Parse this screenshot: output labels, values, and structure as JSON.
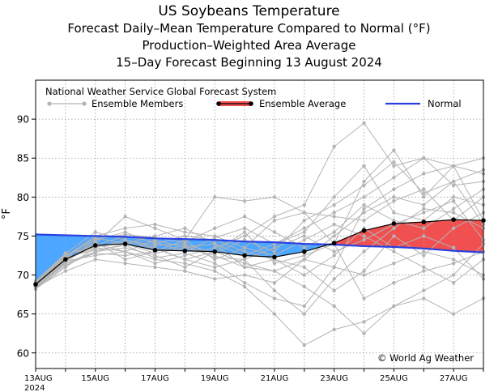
{
  "titles": {
    "line1": "US Soybeans Temperature",
    "line2": "Forecast Daily–Mean Temperature Compared to Normal (°F)",
    "line3": "Production–Weighted Area Average",
    "line4": "15–Day Forecast Beginning 13 August 2024"
  },
  "legend": {
    "header": "National Weather Service Global Forecast System",
    "members_label": "Ensemble Members",
    "average_label": "Ensemble Average",
    "normal_label": "Normal"
  },
  "copyright": "© World Ag Weather",
  "colors": {
    "normal": "#2a3fe0",
    "average": "#000000",
    "members": "#b4b4b4",
    "below_fill": "#4da6ff",
    "above_fill": "#f05050"
  },
  "chart_data": {
    "type": "line",
    "ylabel": "°F",
    "ylim": [
      58,
      95
    ],
    "yticks": [
      60,
      65,
      70,
      75,
      80,
      85,
      90
    ],
    "x": [
      "13AUG",
      "14AUG",
      "15AUG",
      "16AUG",
      "17AUG",
      "18AUG",
      "19AUG",
      "20AUG",
      "21AUG",
      "22AUG",
      "23AUG",
      "24AUG",
      "25AUG",
      "26AUG",
      "27AUG",
      "28AUG"
    ],
    "xtick_labels": [
      "13AUG",
      "15AUG",
      "17AUG",
      "19AUG",
      "21AUG",
      "23AUG",
      "25AUG",
      "27AUG"
    ],
    "year_label": "2024",
    "grid": true,
    "series": [
      {
        "name": "Ensemble Average",
        "values": [
          68.8,
          72.0,
          73.8,
          74.0,
          73.2,
          73.1,
          73.0,
          72.5,
          72.3,
          73.0,
          74.1,
          75.7,
          76.6,
          76.8,
          77.1,
          77.0
        ]
      },
      {
        "name": "Normal",
        "values": [
          75.2,
          75.1,
          75.0,
          74.9,
          74.7,
          74.6,
          74.5,
          74.3,
          74.2,
          74.0,
          73.9,
          73.7,
          73.6,
          73.4,
          73.1,
          72.9
        ]
      }
    ],
    "ensemble_members": [
      [
        68.5,
        71.5,
        73.0,
        74.0,
        72.8,
        73.5,
        72.5,
        71.0,
        70.5,
        72.0,
        75.0,
        78.0,
        80.0,
        79.0,
        82.0,
        83.5
      ],
      [
        69.0,
        72.5,
        74.5,
        75.5,
        74.0,
        75.0,
        74.5,
        73.0,
        72.0,
        71.0,
        68.0,
        70.5,
        75.0,
        72.5,
        76.0,
        78.0
      ],
      [
        68.8,
        72.0,
        74.0,
        77.5,
        76.0,
        74.5,
        80.0,
        79.5,
        80.0,
        78.0,
        74.0,
        82.0,
        86.0,
        80.0,
        84.0,
        77.0
      ],
      [
        68.2,
        71.0,
        73.5,
        73.0,
        72.0,
        71.5,
        70.5,
        68.5,
        65.0,
        61.0,
        63.0,
        64.0,
        66.0,
        68.0,
        70.0,
        74.0
      ],
      [
        69.2,
        72.8,
        75.5,
        74.5,
        73.5,
        72.0,
        71.0,
        72.0,
        68.0,
        65.0,
        69.5,
        73.0,
        76.0,
        78.5,
        78.0,
        76.0
      ],
      [
        68.6,
        71.8,
        72.5,
        73.0,
        71.5,
        72.5,
        73.5,
        75.0,
        77.5,
        79.0,
        86.5,
        89.5,
        84.0,
        85.0,
        81.5,
        82.0
      ],
      [
        68.9,
        72.2,
        74.8,
        74.0,
        75.0,
        76.0,
        74.0,
        72.5,
        74.0,
        76.0,
        78.0,
        80.0,
        82.5,
        85.0,
        84.0,
        85.0
      ],
      [
        68.4,
        70.5,
        72.0,
        71.5,
        71.0,
        70.5,
        69.5,
        70.0,
        69.0,
        72.0,
        71.0,
        70.0,
        71.5,
        73.0,
        72.0,
        70.0
      ],
      [
        69.1,
        72.6,
        73.8,
        75.0,
        74.2,
        73.0,
        74.8,
        76.0,
        74.0,
        75.5,
        80.0,
        84.0,
        78.0,
        77.0,
        80.0,
        79.0
      ],
      [
        68.7,
        71.9,
        74.2,
        72.0,
        73.0,
        74.5,
        72.0,
        73.5,
        72.5,
        74.5,
        76.5,
        75.0,
        73.0,
        71.0,
        69.0,
        72.0
      ],
      [
        68.3,
        71.2,
        73.0,
        73.5,
        72.5,
        71.0,
        73.0,
        71.5,
        70.5,
        68.5,
        66.0,
        62.5,
        66.0,
        67.0,
        65.0,
        67.0
      ],
      [
        69.0,
        72.4,
        75.0,
        76.0,
        76.5,
        75.5,
        75.0,
        73.5,
        77.0,
        78.0,
        77.5,
        77.0,
        79.5,
        81.0,
        77.0,
        80.0
      ],
      [
        68.8,
        72.1,
        73.5,
        74.5,
        73.8,
        74.0,
        72.8,
        74.5,
        73.0,
        77.0,
        79.0,
        81.5,
        84.5,
        80.5,
        82.0,
        76.5
      ],
      [
        68.6,
        71.7,
        74.0,
        73.0,
        74.5,
        73.5,
        74.0,
        71.0,
        72.0,
        70.0,
        72.5,
        76.0,
        73.5,
        75.0,
        73.5,
        69.5
      ],
      [
        68.9,
        72.3,
        73.2,
        73.8,
        72.2,
        72.8,
        71.5,
        69.0,
        67.0,
        66.0,
        71.0,
        78.5,
        81.0,
        83.0,
        84.0,
        83.0
      ],
      [
        68.5,
        71.6,
        74.6,
        75.2,
        74.8,
        74.2,
        76.0,
        77.5,
        75.5,
        73.5,
        75.5,
        79.0,
        77.0,
        76.0,
        78.5,
        81.0
      ],
      [
        69.2,
        72.7,
        73.6,
        74.2,
        73.4,
        72.0,
        73.0,
        75.5,
        71.5,
        72.5,
        74.0,
        67.0,
        69.0,
        70.5,
        71.5,
        73.0
      ],
      [
        68.4,
        71.4,
        72.8,
        72.5,
        73.0,
        73.8,
        72.2,
        72.0,
        73.5,
        75.0,
        73.0,
        74.5,
        76.5,
        78.0,
        79.5,
        74.5
      ]
    ]
  }
}
